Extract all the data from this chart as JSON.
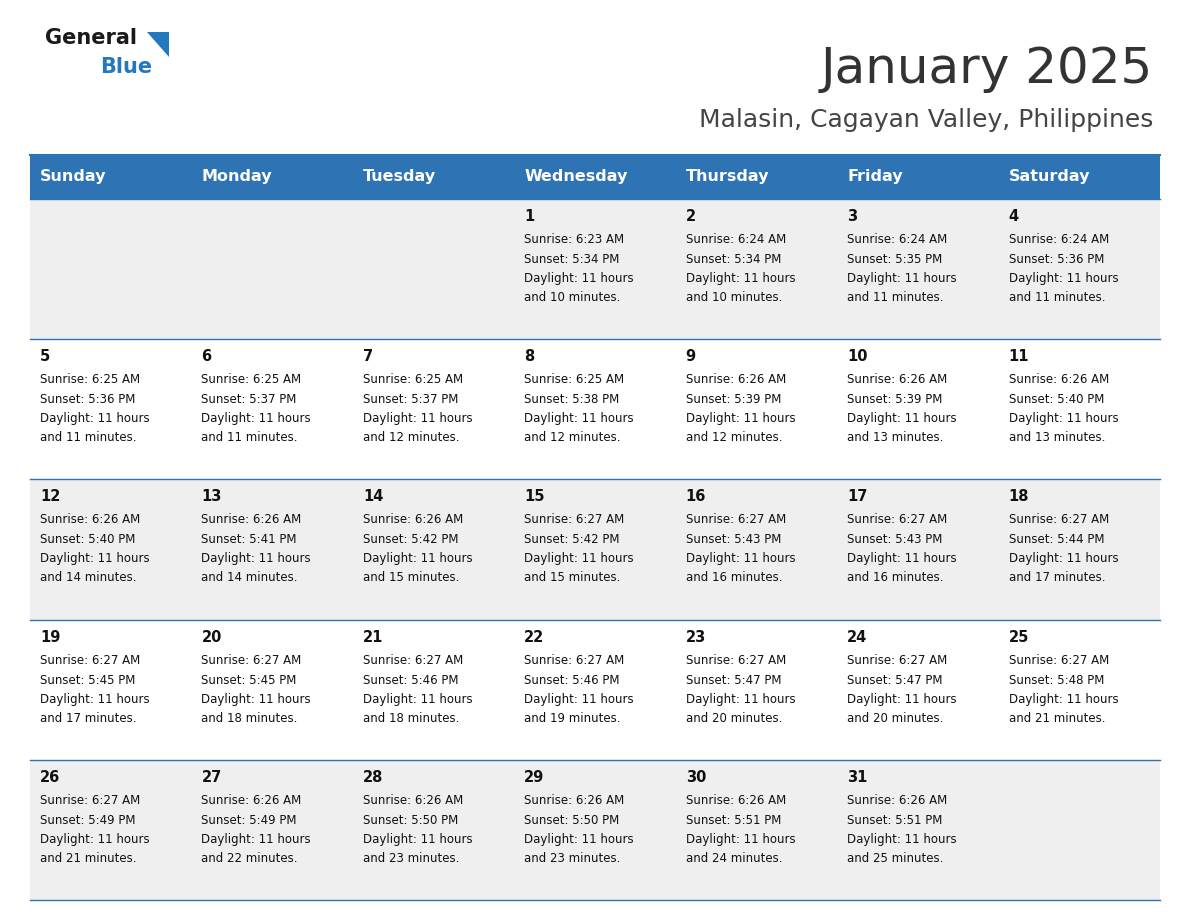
{
  "title": "January 2025",
  "subtitle": "Malasin, Cagayan Valley, Philippines",
  "header_bg": "#2E74B5",
  "header_text_color": "#FFFFFF",
  "day_headers": [
    "Sunday",
    "Monday",
    "Tuesday",
    "Wednesday",
    "Thursday",
    "Friday",
    "Saturday"
  ],
  "cell_bg_even": "#EFEFEF",
  "cell_bg_odd": "#FFFFFF",
  "cell_border_color": "#2E74B5",
  "title_color": "#333333",
  "subtitle_color": "#444444",
  "logo_general_color": "#1A1A1A",
  "logo_blue_color": "#2478BE",
  "calendar": [
    [
      null,
      null,
      null,
      {
        "day": 1,
        "sunrise": "6:23 AM",
        "sunset": "5:34 PM",
        "daylight": "11 hours and 10 minutes."
      },
      {
        "day": 2,
        "sunrise": "6:24 AM",
        "sunset": "5:34 PM",
        "daylight": "11 hours and 10 minutes."
      },
      {
        "day": 3,
        "sunrise": "6:24 AM",
        "sunset": "5:35 PM",
        "daylight": "11 hours and 11 minutes."
      },
      {
        "day": 4,
        "sunrise": "6:24 AM",
        "sunset": "5:36 PM",
        "daylight": "11 hours and 11 minutes."
      }
    ],
    [
      {
        "day": 5,
        "sunrise": "6:25 AM",
        "sunset": "5:36 PM",
        "daylight": "11 hours and 11 minutes."
      },
      {
        "day": 6,
        "sunrise": "6:25 AM",
        "sunset": "5:37 PM",
        "daylight": "11 hours and 11 minutes."
      },
      {
        "day": 7,
        "sunrise": "6:25 AM",
        "sunset": "5:37 PM",
        "daylight": "11 hours and 12 minutes."
      },
      {
        "day": 8,
        "sunrise": "6:25 AM",
        "sunset": "5:38 PM",
        "daylight": "11 hours and 12 minutes."
      },
      {
        "day": 9,
        "sunrise": "6:26 AM",
        "sunset": "5:39 PM",
        "daylight": "11 hours and 12 minutes."
      },
      {
        "day": 10,
        "sunrise": "6:26 AM",
        "sunset": "5:39 PM",
        "daylight": "11 hours and 13 minutes."
      },
      {
        "day": 11,
        "sunrise": "6:26 AM",
        "sunset": "5:40 PM",
        "daylight": "11 hours and 13 minutes."
      }
    ],
    [
      {
        "day": 12,
        "sunrise": "6:26 AM",
        "sunset": "5:40 PM",
        "daylight": "11 hours and 14 minutes."
      },
      {
        "day": 13,
        "sunrise": "6:26 AM",
        "sunset": "5:41 PM",
        "daylight": "11 hours and 14 minutes."
      },
      {
        "day": 14,
        "sunrise": "6:26 AM",
        "sunset": "5:42 PM",
        "daylight": "11 hours and 15 minutes."
      },
      {
        "day": 15,
        "sunrise": "6:27 AM",
        "sunset": "5:42 PM",
        "daylight": "11 hours and 15 minutes."
      },
      {
        "day": 16,
        "sunrise": "6:27 AM",
        "sunset": "5:43 PM",
        "daylight": "11 hours and 16 minutes."
      },
      {
        "day": 17,
        "sunrise": "6:27 AM",
        "sunset": "5:43 PM",
        "daylight": "11 hours and 16 minutes."
      },
      {
        "day": 18,
        "sunrise": "6:27 AM",
        "sunset": "5:44 PM",
        "daylight": "11 hours and 17 minutes."
      }
    ],
    [
      {
        "day": 19,
        "sunrise": "6:27 AM",
        "sunset": "5:45 PM",
        "daylight": "11 hours and 17 minutes."
      },
      {
        "day": 20,
        "sunrise": "6:27 AM",
        "sunset": "5:45 PM",
        "daylight": "11 hours and 18 minutes."
      },
      {
        "day": 21,
        "sunrise": "6:27 AM",
        "sunset": "5:46 PM",
        "daylight": "11 hours and 18 minutes."
      },
      {
        "day": 22,
        "sunrise": "6:27 AM",
        "sunset": "5:46 PM",
        "daylight": "11 hours and 19 minutes."
      },
      {
        "day": 23,
        "sunrise": "6:27 AM",
        "sunset": "5:47 PM",
        "daylight": "11 hours and 20 minutes."
      },
      {
        "day": 24,
        "sunrise": "6:27 AM",
        "sunset": "5:47 PM",
        "daylight": "11 hours and 20 minutes."
      },
      {
        "day": 25,
        "sunrise": "6:27 AM",
        "sunset": "5:48 PM",
        "daylight": "11 hours and 21 minutes."
      }
    ],
    [
      {
        "day": 26,
        "sunrise": "6:27 AM",
        "sunset": "5:49 PM",
        "daylight": "11 hours and 21 minutes."
      },
      {
        "day": 27,
        "sunrise": "6:26 AM",
        "sunset": "5:49 PM",
        "daylight": "11 hours and 22 minutes."
      },
      {
        "day": 28,
        "sunrise": "6:26 AM",
        "sunset": "5:50 PM",
        "daylight": "11 hours and 23 minutes."
      },
      {
        "day": 29,
        "sunrise": "6:26 AM",
        "sunset": "5:50 PM",
        "daylight": "11 hours and 23 minutes."
      },
      {
        "day": 30,
        "sunrise": "6:26 AM",
        "sunset": "5:51 PM",
        "daylight": "11 hours and 24 minutes."
      },
      {
        "day": 31,
        "sunrise": "6:26 AM",
        "sunset": "5:51 PM",
        "daylight": "11 hours and 25 minutes."
      },
      null
    ]
  ]
}
